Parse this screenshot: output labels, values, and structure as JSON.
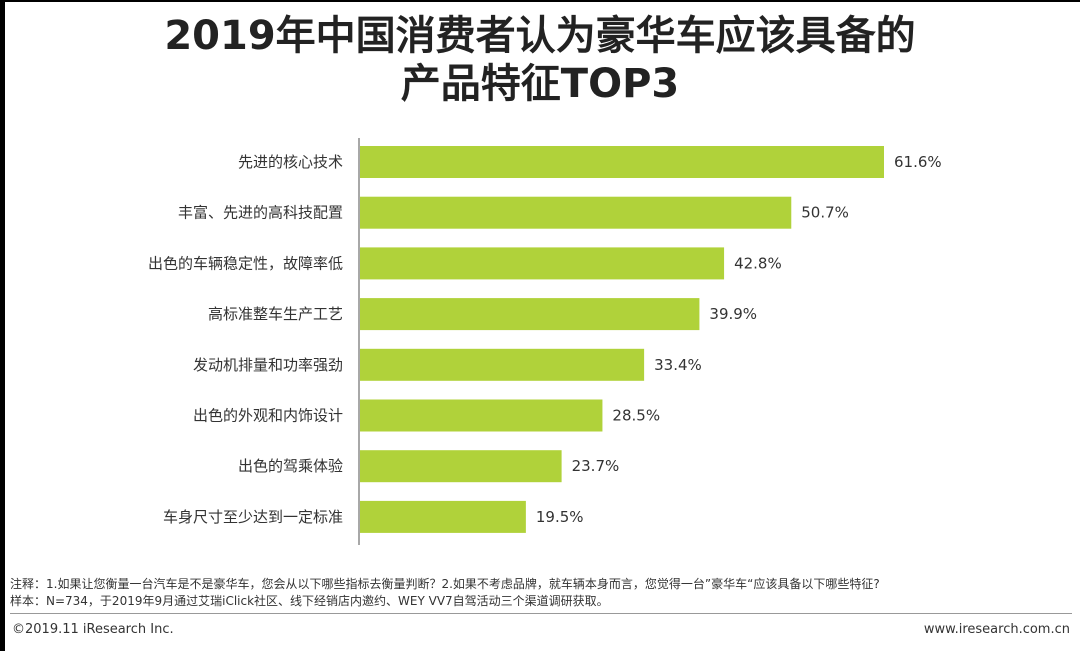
{
  "chart_data": {
    "type": "bar",
    "orientation": "horizontal",
    "title": "2019年中国消费者认为豪华车应该具备的产品特征TOP3",
    "title_lines": [
      "2019年中国消费者认为豪华车应该具备的",
      "产品特征TOP3"
    ],
    "categories": [
      "先进的核心技术",
      "丰富、先进的高科技配置",
      "出色的车辆稳定性，故障率低",
      "高标准整车生产工艺",
      "发动机排量和功率强劲",
      "出色的外观和内饰设计",
      "出色的驾乘体验",
      "车身尺寸至少达到一定标准"
    ],
    "values": [
      61.6,
      50.7,
      42.8,
      39.9,
      33.4,
      28.5,
      23.7,
      19.5
    ],
    "value_labels": [
      "61.6%",
      "50.7%",
      "42.8%",
      "39.9%",
      "33.4%",
      "28.5%",
      "23.7%",
      "19.5%"
    ],
    "unit": "%",
    "xlim": [
      0,
      80
    ],
    "grid": false,
    "bar_color": "#b0d23a"
  },
  "notes": {
    "note1": "注释：1.如果让您衡量一台汽车是不是豪华车，您会从以下哪些指标去衡量判断？2.如果不考虑品牌，就车辆本身而言，您觉得一台”豪华车“应该具备以下哪些特征?",
    "note2": "样本：N=734，于2019年9月通过艾瑞iClick社区、线下经销店内邀约、WEY VV7自驾活动三个渠道调研获取。"
  },
  "footer": {
    "copyright": "©2019.11 iResearch Inc.",
    "website": "www.iresearch.com.cn"
  }
}
